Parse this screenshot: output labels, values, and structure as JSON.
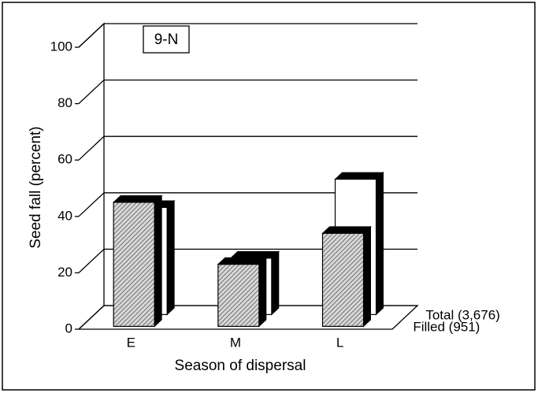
{
  "chart_data": {
    "type": "bar3d",
    "annotation": "9-N",
    "xlabel": "Season of dispersal",
    "ylabel": "Seed fall (percent)",
    "categories": [
      "E",
      "M",
      "L"
    ],
    "series": [
      {
        "name": "Total (3,676)",
        "color": "#ffffff",
        "values": [
          38,
          20,
          48
        ]
      },
      {
        "name": "Filled (951)",
        "color": "#a8a8a8",
        "values": [
          44,
          22,
          33
        ]
      }
    ],
    "ylim": [
      0,
      100
    ],
    "yticks": [
      0,
      20,
      40,
      60,
      80,
      100
    ],
    "grid": true
  }
}
